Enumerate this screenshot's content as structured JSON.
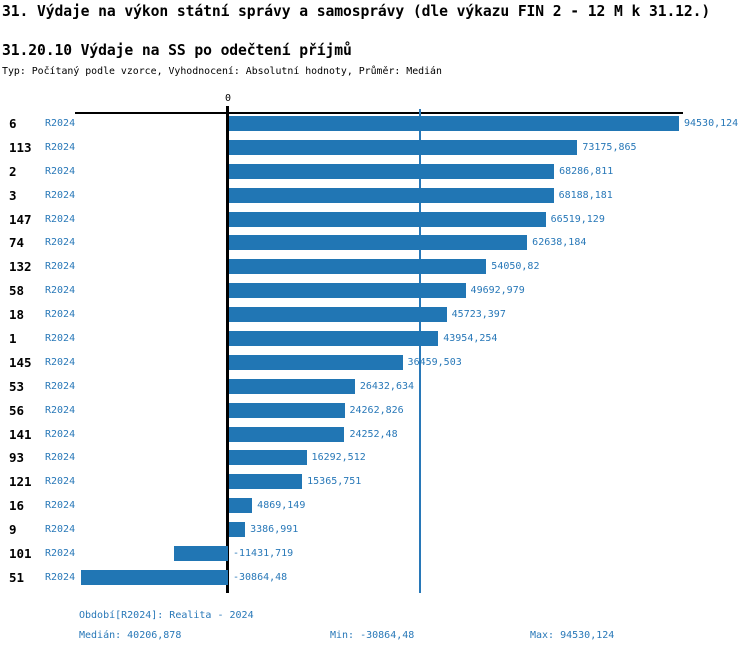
{
  "title": "31. Výdaje na výkon státní správy a samosprávy (dle výkazu FIN 2 - 12 M k 31.12.)",
  "subtitle": "31.20.10 Výdaje na SS po odečtení příjmů",
  "type_line": "Typ: Počítaný podle vzorce, Vyhodnocení: Absolutní hodnoty, Průměr: Medián",
  "axis": {
    "zero_label": "0"
  },
  "colors": {
    "bar": "#2176B4",
    "blue_text": "#2878B8",
    "axis_black": "#000000"
  },
  "footer": {
    "period": "Období[R2024]: Realita - 2024",
    "median": "Medián: 40206,878",
    "min": "Min: -30864,48",
    "max": "Max: 94530,124"
  },
  "chart_data": {
    "type": "bar",
    "orientation": "horizontal",
    "series_label": "R2024",
    "categories": [
      "6",
      "113",
      "2",
      "3",
      "147",
      "74",
      "132",
      "58",
      "18",
      "1",
      "145",
      "53",
      "56",
      "141",
      "93",
      "121",
      "16",
      "9",
      "101",
      "51"
    ],
    "values": [
      94530.124,
      73175.865,
      68286.811,
      68188.181,
      66519.129,
      62638.184,
      54050.82,
      49692.979,
      45723.397,
      43954.254,
      36459.503,
      26432.634,
      24262.826,
      24252.48,
      16292.512,
      15365.751,
      4869.149,
      3386.991,
      -11431.719,
      -30864.48
    ],
    "value_labels": [
      "94530,124",
      "73175,865",
      "68286,811",
      "68188,181",
      "66519,129",
      "62638,184",
      "54050,82",
      "49692,979",
      "45723,397",
      "43954,254",
      "36459,503",
      "26432,634",
      "24262,826",
      "24252,48",
      "16292,512",
      "15365,751",
      "4869,149",
      "3386,991",
      "-11431,719",
      "-30864,48"
    ],
    "median": 40206.878,
    "min": -30864.48,
    "max": 94530.124,
    "xlim": [
      -33000,
      96000
    ],
    "grid": false,
    "legend": "none",
    "zero_tick_label": "0"
  }
}
